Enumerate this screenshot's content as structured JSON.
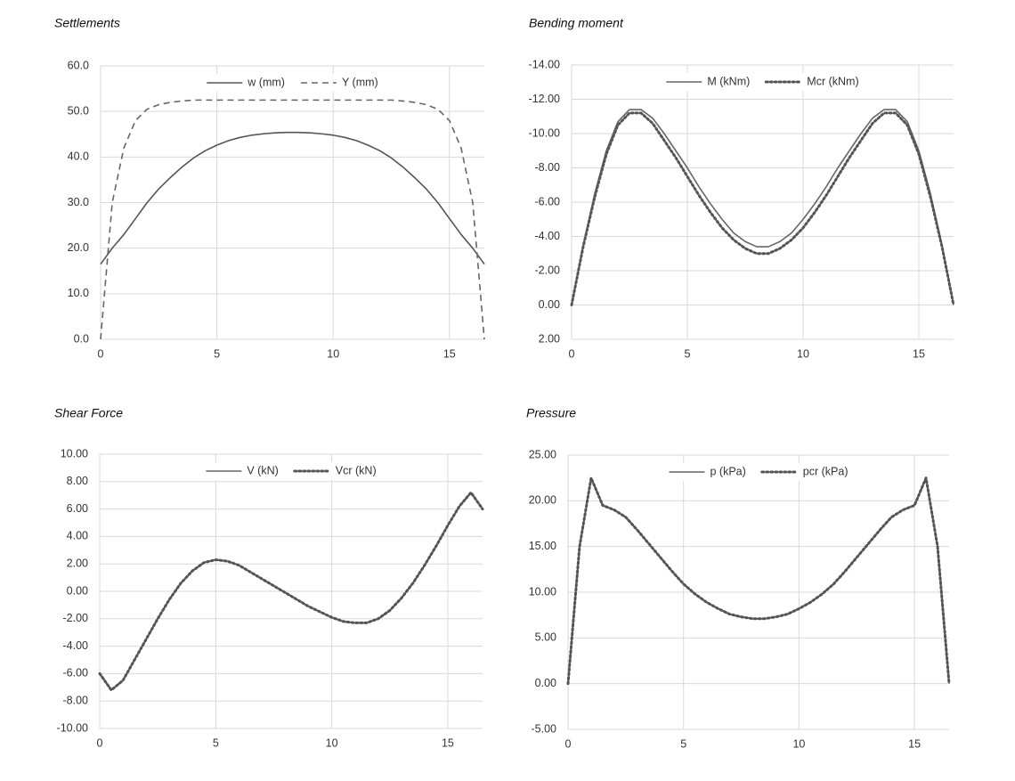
{
  "chart_data": [
    {
      "type": "line",
      "title": "Settlements",
      "x": [
        0,
        0.5,
        1,
        1.5,
        2,
        2.5,
        3,
        3.5,
        4,
        4.5,
        5,
        5.5,
        6,
        6.5,
        7,
        7.5,
        8,
        8.5,
        9,
        9.5,
        10,
        10.5,
        11,
        11.5,
        12,
        12.5,
        13,
        13.5,
        14,
        14.5,
        15,
        15.5,
        16,
        16.5
      ],
      "series": [
        {
          "name": "w (mm)",
          "color": "#555555",
          "style": "solid",
          "values": [
            16.5,
            20,
            23,
            26.5,
            30,
            33,
            35.5,
            37.8,
            39.8,
            41.4,
            42.6,
            43.6,
            44.3,
            44.8,
            45.1,
            45.3,
            45.4,
            45.4,
            45.3,
            45.1,
            44.8,
            44.3,
            43.6,
            42.6,
            41.4,
            39.8,
            37.8,
            35.5,
            33,
            30,
            26.5,
            23,
            20,
            16.5
          ]
        },
        {
          "name": "Y (mm)",
          "color": "#666666",
          "style": "dashed",
          "values": [
            0,
            30,
            42,
            48,
            50.5,
            51.5,
            52,
            52.3,
            52.5,
            52.5,
            52.5,
            52.5,
            52.5,
            52.5,
            52.5,
            52.5,
            52.5,
            52.5,
            52.5,
            52.5,
            52.5,
            52.5,
            52.5,
            52.5,
            52.5,
            52.5,
            52.3,
            52,
            51.5,
            50.5,
            48,
            42,
            30,
            0
          ]
        }
      ],
      "xlim": [
        0,
        16.5
      ],
      "xticks": [
        0,
        5,
        10,
        15
      ],
      "ylim": [
        0,
        60
      ],
      "yticks": [
        {
          "value": 0,
          "label": "0.0"
        },
        {
          "value": 10,
          "label": "10.0"
        },
        {
          "value": 20,
          "label": "20.0"
        },
        {
          "value": 30,
          "label": "30.0"
        },
        {
          "value": 40,
          "label": "40.0"
        },
        {
          "value": 50,
          "label": "50.0"
        },
        {
          "value": 60,
          "label": "60.0"
        }
      ],
      "grid": true,
      "legend": "top"
    },
    {
      "type": "line",
      "title": "Bending moment",
      "x": [
        0,
        0.5,
        1,
        1.5,
        2,
        2.5,
        3,
        3.5,
        4,
        4.5,
        5,
        5.5,
        6,
        6.5,
        7,
        7.5,
        8,
        8.5,
        9,
        9.5,
        10,
        10.5,
        11,
        11.5,
        12,
        12.5,
        13,
        13.5,
        14,
        14.5,
        15,
        15.5,
        16,
        16.5
      ],
      "series": [
        {
          "name": "M (kNm)",
          "color": "#666666",
          "style": "solid",
          "values": [
            0,
            -3.5,
            -6.5,
            -9,
            -10.7,
            -11.4,
            -11.4,
            -10.9,
            -10,
            -9,
            -8,
            -6.9,
            -5.9,
            -5,
            -4.2,
            -3.7,
            -3.4,
            -3.4,
            -3.7,
            -4.2,
            -5,
            -5.9,
            -6.9,
            -8,
            -9,
            -10,
            -10.9,
            -11.4,
            -11.4,
            -10.7,
            -9,
            -6.5,
            -3.5,
            0
          ]
        },
        {
          "name": "Mcr (kNm)",
          "color": "#555555",
          "style": "dotted",
          "values": [
            0,
            -3.4,
            -6.3,
            -8.8,
            -10.5,
            -11.2,
            -11.2,
            -10.6,
            -9.6,
            -8.6,
            -7.5,
            -6.4,
            -5.4,
            -4.5,
            -3.8,
            -3.3,
            -3,
            -3,
            -3.3,
            -3.8,
            -4.5,
            -5.4,
            -6.4,
            -7.5,
            -8.6,
            -9.6,
            -10.6,
            -11.2,
            -11.2,
            -10.5,
            -8.8,
            -6.3,
            -3.4,
            0
          ]
        }
      ],
      "xlim": [
        0,
        16.5
      ],
      "xticks": [
        0,
        5,
        10,
        15
      ],
      "ylim": [
        2,
        -14
      ],
      "yticks": [
        {
          "value": 2,
          "label": "2.00"
        },
        {
          "value": 0,
          "label": "0.00"
        },
        {
          "value": -2,
          "label": "-2.00"
        },
        {
          "value": -4,
          "label": "-4.00"
        },
        {
          "value": -6,
          "label": "-6.00"
        },
        {
          "value": -8,
          "label": "-8.00"
        },
        {
          "value": -10,
          "label": "-10.00"
        },
        {
          "value": -12,
          "label": "-12.00"
        },
        {
          "value": -14,
          "label": "-14.00"
        }
      ],
      "grid": true,
      "legend": "top"
    },
    {
      "type": "line",
      "title": "Shear Force",
      "x": [
        0,
        0.5,
        1,
        1.5,
        2,
        2.5,
        3,
        3.5,
        4,
        4.5,
        5,
        5.5,
        6,
        6.5,
        7,
        7.5,
        8,
        8.5,
        9,
        9.5,
        10,
        10.5,
        11,
        11.5,
        12,
        12.5,
        13,
        13.5,
        14,
        14.5,
        15,
        15.5,
        16,
        16.5
      ],
      "series": [
        {
          "name": "V (kN)",
          "color": "#666666",
          "style": "solid",
          "values": [
            -6,
            -7.2,
            -6.5,
            -5,
            -3.5,
            -2,
            -0.6,
            0.6,
            1.5,
            2.1,
            2.3,
            2.2,
            1.9,
            1.4,
            0.9,
            0.4,
            -0.1,
            -0.6,
            -1.1,
            -1.5,
            -1.9,
            -2.2,
            -2.3,
            -2.3,
            -2,
            -1.4,
            -0.5,
            0.6,
            1.9,
            3.3,
            4.8,
            6.2,
            7.2,
            6
          ]
        },
        {
          "name": "Vcr (kN)",
          "color": "#555555",
          "style": "dotted",
          "values": [
            -6,
            -7.2,
            -6.5,
            -5,
            -3.5,
            -2,
            -0.6,
            0.6,
            1.5,
            2.1,
            2.3,
            2.2,
            1.9,
            1.4,
            0.9,
            0.4,
            -0.1,
            -0.6,
            -1.1,
            -1.5,
            -1.9,
            -2.2,
            -2.3,
            -2.3,
            -2,
            -1.4,
            -0.5,
            0.6,
            1.9,
            3.3,
            4.8,
            6.2,
            7.2,
            6
          ]
        }
      ],
      "xlim": [
        0,
        16.5
      ],
      "xticks": [
        0,
        5,
        10,
        15
      ],
      "ylim": [
        -10,
        10
      ],
      "yticks": [
        {
          "value": -10,
          "label": "-10.00"
        },
        {
          "value": -8,
          "label": "-8.00"
        },
        {
          "value": -6,
          "label": "-6.00"
        },
        {
          "value": -4,
          "label": "-4.00"
        },
        {
          "value": -2,
          "label": "-2.00"
        },
        {
          "value": 0,
          "label": "0.00"
        },
        {
          "value": 2,
          "label": "2.00"
        },
        {
          "value": 4,
          "label": "4.00"
        },
        {
          "value": 6,
          "label": "6.00"
        },
        {
          "value": 8,
          "label": "8.00"
        },
        {
          "value": 10,
          "label": "10.00"
        }
      ],
      "grid": true,
      "legend": "top"
    },
    {
      "type": "line",
      "title": "Pressure",
      "x": [
        0,
        0.5,
        1,
        1.5,
        2,
        2.5,
        3,
        3.5,
        4,
        4.5,
        5,
        5.5,
        6,
        6.5,
        7,
        7.5,
        8,
        8.5,
        9,
        9.5,
        10,
        10.5,
        11,
        11.5,
        12,
        12.5,
        13,
        13.5,
        14,
        14.5,
        15,
        15.5,
        16,
        16.5
      ],
      "series": [
        {
          "name": "p (kPa)",
          "color": "#666666",
          "style": "solid",
          "values": [
            0,
            15,
            22.5,
            19.5,
            19,
            18.2,
            16.8,
            15.3,
            13.8,
            12.3,
            10.9,
            9.8,
            8.9,
            8.2,
            7.6,
            7.3,
            7.1,
            7.1,
            7.3,
            7.6,
            8.2,
            8.9,
            9.8,
            10.9,
            12.3,
            13.8,
            15.3,
            16.8,
            18.2,
            19,
            19.5,
            22.5,
            15,
            0
          ]
        },
        {
          "name": "pcr (kPa)",
          "color": "#555555",
          "style": "dotted",
          "values": [
            0,
            15,
            22.5,
            19.5,
            19,
            18.2,
            16.8,
            15.3,
            13.8,
            12.3,
            10.9,
            9.8,
            8.9,
            8.2,
            7.6,
            7.3,
            7.1,
            7.1,
            7.3,
            7.6,
            8.2,
            8.9,
            9.8,
            10.9,
            12.3,
            13.8,
            15.3,
            16.8,
            18.2,
            19,
            19.5,
            22.5,
            15,
            0
          ]
        }
      ],
      "xlim": [
        0,
        16.5
      ],
      "xticks": [
        0,
        5,
        10,
        15
      ],
      "ylim": [
        -5,
        25
      ],
      "yticks": [
        {
          "value": -5,
          "label": "-5.00"
        },
        {
          "value": 0,
          "label": "0.00"
        },
        {
          "value": 5,
          "label": "5.00"
        },
        {
          "value": 10,
          "label": "10.00"
        },
        {
          "value": 15,
          "label": "15.00"
        },
        {
          "value": 20,
          "label": "20.00"
        },
        {
          "value": 25,
          "label": "25.00"
        }
      ],
      "grid": true,
      "legend": "top"
    }
  ]
}
